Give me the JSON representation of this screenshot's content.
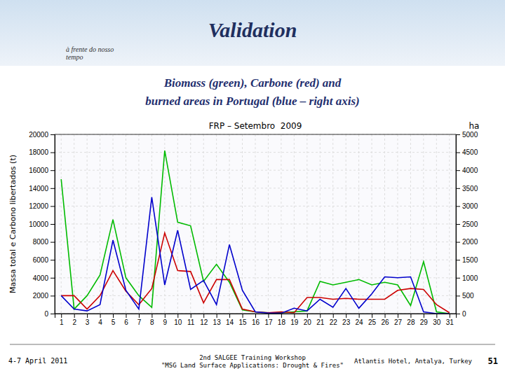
{
  "title": "Validation",
  "subtitle": [
    "Biomass (green), Carbone (red) and",
    "burned areas in Portugal (blue – right axis)"
  ],
  "annotations": [
    "à frente do nosso\ntempo",
    "4-7 April 2011",
    "2nd SALGEE Training Workshop\n\"MSG Land Surface Applications: Drought & Fires\"",
    "Atlantis Hotel, Antalya, Turkey",
    "51"
  ],
  "chart_data": {
    "type": "line",
    "title": "FRP – Setembro  2009",
    "ylabel": "Massa total e Carbono libertados (t)",
    "y2label": "ha",
    "x": [
      1,
      2,
      3,
      4,
      5,
      6,
      7,
      8,
      9,
      10,
      11,
      12,
      13,
      14,
      15,
      16,
      17,
      18,
      19,
      20,
      21,
      22,
      23,
      24,
      25,
      26,
      27,
      28,
      29,
      30,
      31
    ],
    "xlim": [
      0.5,
      31.5
    ],
    "xticks": [
      1,
      2,
      3,
      4,
      5,
      6,
      7,
      8,
      9,
      10,
      11,
      12,
      13,
      14,
      15,
      16,
      17,
      18,
      19,
      20,
      21,
      22,
      23,
      24,
      25,
      26,
      27,
      28,
      29,
      30,
      31
    ],
    "ylim": [
      0,
      20000
    ],
    "yticks": [
      0,
      2000,
      4000,
      6000,
      8000,
      10000,
      12000,
      14000,
      16000,
      18000,
      20000
    ],
    "y2lim": [
      0,
      5000
    ],
    "y2ticks": [
      0,
      500,
      1000,
      1500,
      2000,
      2500,
      3000,
      3500,
      4000,
      4500,
      5000
    ],
    "grid": true,
    "series": [
      {
        "color": "#00bb00",
        "values": [
          15000,
          500,
          2000,
          4300,
          10500,
          4000,
          2000,
          700,
          18200,
          10200,
          9800,
          3600,
          5500,
          3500,
          400,
          200,
          100,
          100,
          200,
          300,
          3600,
          3200,
          3500,
          3800,
          3200,
          3500,
          3200,
          900,
          5800,
          200,
          0
        ]
      },
      {
        "color": "#cc0000",
        "values": [
          2000,
          2000,
          500,
          2000,
          4800,
          2500,
          1000,
          2800,
          9000,
          4800,
          4700,
          1200,
          3800,
          3800,
          500,
          200,
          100,
          200,
          100,
          1800,
          1800,
          1600,
          1700,
          1600,
          1600,
          1600,
          2600,
          2800,
          2700,
          1000,
          100
        ]
      },
      {
        "color": "#0000cc",
        "axis": "y2",
        "values": [
          500,
          125,
          75,
          250,
          2050,
          650,
          125,
          3250,
          800,
          2325,
          675,
          925,
          250,
          1925,
          650,
          50,
          12,
          12,
          150,
          75,
          400,
          175,
          700,
          150,
          550,
          1025,
          1000,
          1025,
          50,
          0,
          0
        ]
      }
    ]
  }
}
